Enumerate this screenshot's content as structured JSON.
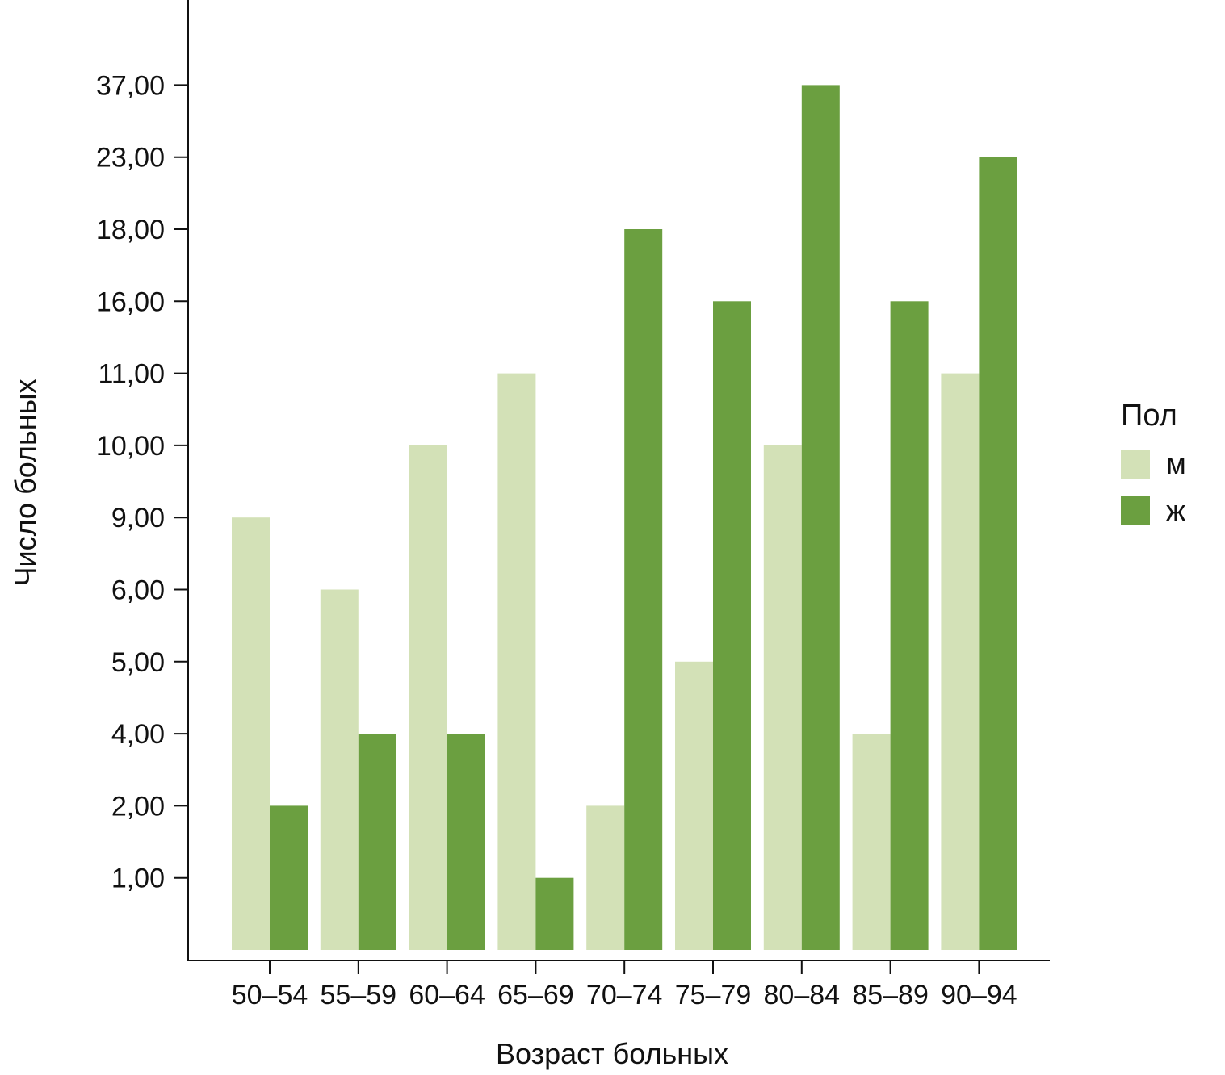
{
  "chart_data": {
    "type": "bar",
    "xlabel": "Возраст больных",
    "ylabel": "Число больных",
    "categories": [
      "50–54",
      "55–59",
      "60–64",
      "65–69",
      "70–74",
      "75–79",
      "80–84",
      "85–89",
      "90–94"
    ],
    "y_ticks": [
      "1,00",
      "2,00",
      "4,00",
      "5,00",
      "6,00",
      "9,00",
      "10,00",
      "11,00",
      "16,00",
      "18,00",
      "23,00",
      "37,00"
    ],
    "y_scale": "ordinal (each distinct value occupies one equally spaced tick level)",
    "series": [
      {
        "name": "м",
        "color": "#d3e1b7",
        "values": [
          9,
          6,
          10,
          11,
          2,
          5,
          10,
          4,
          11
        ]
      },
      {
        "name": "ж",
        "color": "#6b9f40",
        "values": [
          2,
          4,
          4,
          1,
          18,
          16,
          37,
          16,
          23
        ]
      }
    ],
    "legend": {
      "title": "Пол",
      "position": "right"
    },
    "grid": false
  }
}
